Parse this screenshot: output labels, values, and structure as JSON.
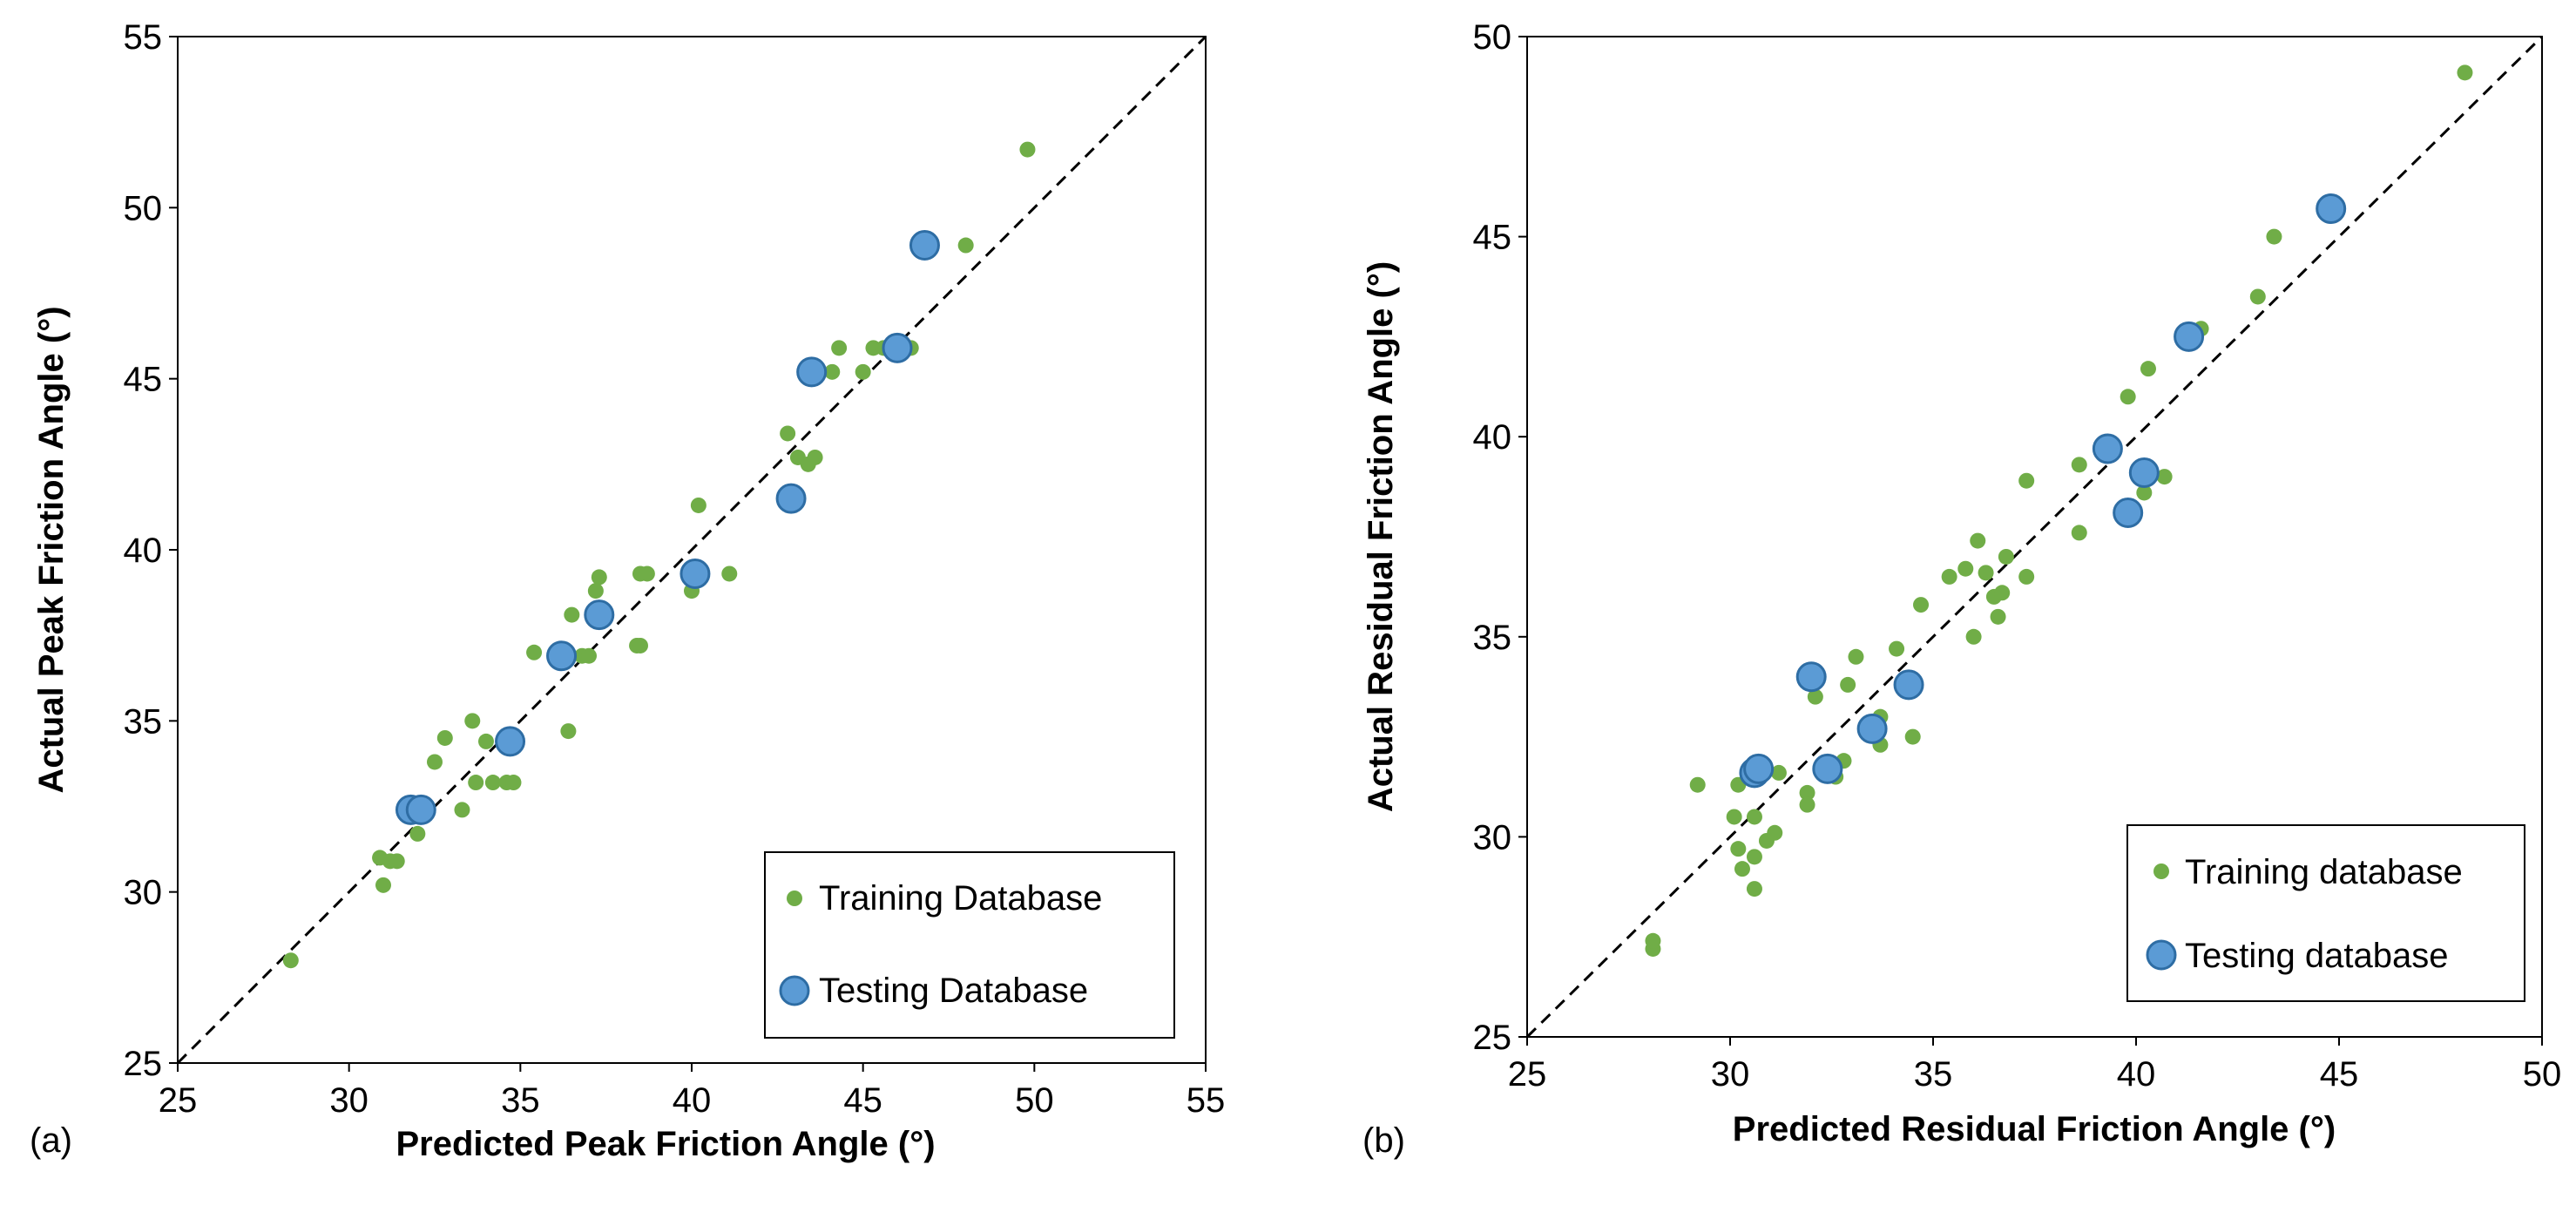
{
  "chart_data": [
    {
      "type": "scatter",
      "panel_label": "(a)",
      "xlabel": "Predicted Peak Friction Angle (°)",
      "ylabel": "Actual Peak Friction Angle (°)",
      "xlim": [
        25,
        55
      ],
      "ylim": [
        25,
        55
      ],
      "xticks": [
        "25",
        "30",
        "35",
        "40",
        "45",
        "50",
        "55"
      ],
      "yticks": [
        "25",
        "30",
        "35",
        "40",
        "45",
        "50",
        "55"
      ],
      "grid": false,
      "reference_line": "y = x (dashed)",
      "legend_position": "bottom-right",
      "series": [
        {
          "name": "Training Database",
          "color": "#70ad47",
          "marker": "small-circle",
          "points": [
            [
              28.3,
              28.0
            ],
            [
              30.9,
              31.0
            ],
            [
              31.0,
              30.2
            ],
            [
              31.2,
              30.9
            ],
            [
              31.4,
              30.9
            ],
            [
              32.0,
              31.7
            ],
            [
              32.5,
              33.8
            ],
            [
              32.8,
              34.5
            ],
            [
              33.3,
              32.4
            ],
            [
              33.6,
              35.0
            ],
            [
              33.7,
              33.2
            ],
            [
              34.0,
              34.4
            ],
            [
              34.2,
              33.2
            ],
            [
              34.6,
              33.2
            ],
            [
              34.8,
              33.2
            ],
            [
              35.4,
              37.0
            ],
            [
              36.4,
              34.7
            ],
            [
              36.5,
              38.1
            ],
            [
              36.8,
              36.9
            ],
            [
              37.0,
              36.9
            ],
            [
              37.2,
              38.8
            ],
            [
              37.3,
              39.2
            ],
            [
              38.4,
              37.2
            ],
            [
              38.5,
              37.2
            ],
            [
              38.5,
              39.3
            ],
            [
              38.7,
              39.3
            ],
            [
              40.0,
              38.8
            ],
            [
              40.2,
              41.3
            ],
            [
              41.1,
              39.3
            ],
            [
              42.8,
              43.4
            ],
            [
              43.1,
              42.7
            ],
            [
              43.4,
              42.5
            ],
            [
              43.6,
              42.7
            ],
            [
              44.1,
              45.2
            ],
            [
              44.3,
              45.9
            ],
            [
              45.0,
              45.2
            ],
            [
              45.3,
              45.9
            ],
            [
              45.6,
              45.9
            ],
            [
              46.4,
              45.9
            ],
            [
              48.0,
              48.9
            ],
            [
              49.8,
              51.7
            ]
          ]
        },
        {
          "name": "Testing Database",
          "color": "#5b9bd5",
          "marker": "large-circle",
          "points": [
            [
              31.8,
              32.4
            ],
            [
              32.1,
              32.4
            ],
            [
              34.7,
              34.4
            ],
            [
              36.2,
              36.9
            ],
            [
              37.3,
              38.1
            ],
            [
              40.1,
              39.3
            ],
            [
              42.9,
              41.5
            ],
            [
              43.5,
              45.2
            ],
            [
              46.0,
              45.9
            ],
            [
              46.8,
              48.9
            ]
          ]
        }
      ]
    },
    {
      "type": "scatter",
      "panel_label": "(b)",
      "xlabel": "Predicted Residual Friction Angle (°)",
      "ylabel": "Actual Residual Friction Angle (°)",
      "xlim": [
        25,
        50
      ],
      "ylim": [
        25,
        50
      ],
      "xticks": [
        "25",
        "30",
        "35",
        "40",
        "45",
        "50"
      ],
      "yticks": [
        "25",
        "30",
        "35",
        "40",
        "45",
        "50"
      ],
      "grid": false,
      "reference_line": "y = x (dashed)",
      "legend_position": "bottom-right",
      "series": [
        {
          "name": "Training database",
          "color": "#70ad47",
          "marker": "small-circle",
          "points": [
            [
              28.1,
              27.2
            ],
            [
              28.1,
              27.4
            ],
            [
              29.2,
              31.3
            ],
            [
              30.1,
              30.5
            ],
            [
              30.2,
              31.3
            ],
            [
              30.2,
              29.7
            ],
            [
              30.3,
              29.2
            ],
            [
              30.6,
              30.5
            ],
            [
              30.6,
              29.5
            ],
            [
              30.6,
              28.7
            ],
            [
              30.9,
              29.9
            ],
            [
              31.1,
              30.1
            ],
            [
              31.2,
              31.6
            ],
            [
              31.9,
              31.1
            ],
            [
              31.9,
              30.8
            ],
            [
              32.1,
              33.5
            ],
            [
              32.6,
              31.5
            ],
            [
              32.8,
              31.9
            ],
            [
              32.9,
              33.8
            ],
            [
              33.1,
              34.5
            ],
            [
              33.4,
              32.7
            ],
            [
              33.7,
              32.3
            ],
            [
              33.7,
              33.0
            ],
            [
              34.1,
              34.7
            ],
            [
              34.5,
              32.5
            ],
            [
              34.7,
              35.8
            ],
            [
              35.4,
              36.5
            ],
            [
              35.8,
              36.7
            ],
            [
              36.0,
              35.0
            ],
            [
              36.1,
              37.4
            ],
            [
              36.3,
              36.6
            ],
            [
              36.5,
              36.0
            ],
            [
              36.6,
              35.5
            ],
            [
              36.7,
              36.1
            ],
            [
              36.8,
              37.0
            ],
            [
              37.3,
              38.9
            ],
            [
              37.3,
              36.5
            ],
            [
              38.6,
              37.6
            ],
            [
              38.6,
              39.3
            ],
            [
              39.8,
              41.0
            ],
            [
              40.2,
              38.6
            ],
            [
              40.3,
              41.7
            ],
            [
              40.7,
              39.0
            ],
            [
              41.6,
              42.7
            ],
            [
              43.0,
              43.5
            ],
            [
              43.4,
              45.0
            ],
            [
              48.1,
              49.1
            ]
          ]
        },
        {
          "name": "Testing database",
          "color": "#5b9bd5",
          "marker": "large-circle",
          "points": [
            [
              30.6,
              31.6
            ],
            [
              30.7,
              31.7
            ],
            [
              32.0,
              34.0
            ],
            [
              32.4,
              31.7
            ],
            [
              33.5,
              32.7
            ],
            [
              34.4,
              33.8
            ],
            [
              39.3,
              39.7
            ],
            [
              39.8,
              38.1
            ],
            [
              40.2,
              39.1
            ],
            [
              41.3,
              42.5
            ],
            [
              44.8,
              45.7
            ]
          ]
        }
      ]
    }
  ]
}
